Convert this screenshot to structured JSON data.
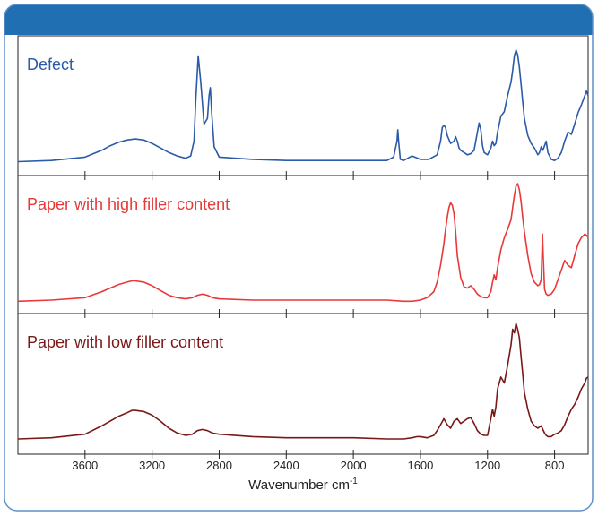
{
  "chart_data": {
    "type": "line",
    "xlabel": "Wavenumber cm",
    "xlabel_superscript": "-1",
    "x_reversed": true,
    "xlim": [
      4000,
      600
    ],
    "x_ticks": [
      3600,
      3200,
      2800,
      2400,
      2000,
      1600,
      1200,
      800
    ],
    "x_tick_labels": [
      "3600",
      "3200",
      "2800",
      "2400",
      "2000",
      "1600",
      "1200",
      "800"
    ],
    "y_axis_shown": false,
    "grid": false,
    "panel_ylim": [
      0,
      1
    ],
    "colors": {
      "header": "#1f6fb2",
      "frame": "#5f8fc6",
      "axis": "#222222"
    },
    "series": [
      {
        "name": "Defect",
        "color": "#2a5aa8",
        "x": [
          4000,
          3800,
          3600,
          3500,
          3450,
          3400,
          3350,
          3300,
          3250,
          3200,
          3150,
          3100,
          3050,
          3000,
          2970,
          2950,
          2940,
          2925,
          2910,
          2890,
          2870,
          2860,
          2853,
          2845,
          2830,
          2800,
          2600,
          2400,
          2200,
          2000,
          1800,
          1760,
          1740,
          1735,
          1730,
          1720,
          1700,
          1650,
          1600,
          1550,
          1500,
          1480,
          1470,
          1460,
          1450,
          1440,
          1420,
          1400,
          1390,
          1380,
          1370,
          1360,
          1340,
          1320,
          1300,
          1280,
          1260,
          1250,
          1240,
          1230,
          1220,
          1200,
          1180,
          1170,
          1160,
          1150,
          1140,
          1120,
          1100,
          1080,
          1060,
          1050,
          1040,
          1030,
          1020,
          1010,
          1000,
          990,
          980,
          960,
          940,
          920,
          900,
          890,
          880,
          870,
          860,
          850,
          840,
          820,
          800,
          780,
          760,
          740,
          720,
          700,
          680,
          660,
          640,
          620,
          610,
          600
        ],
        "values": [
          0.02,
          0.03,
          0.06,
          0.12,
          0.16,
          0.19,
          0.21,
          0.22,
          0.21,
          0.18,
          0.14,
          0.1,
          0.07,
          0.05,
          0.07,
          0.2,
          0.55,
          0.95,
          0.72,
          0.35,
          0.4,
          0.6,
          0.67,
          0.45,
          0.15,
          0.06,
          0.04,
          0.03,
          0.03,
          0.03,
          0.03,
          0.06,
          0.2,
          0.3,
          0.2,
          0.04,
          0.03,
          0.07,
          0.04,
          0.04,
          0.08,
          0.2,
          0.32,
          0.34,
          0.32,
          0.25,
          0.18,
          0.2,
          0.24,
          0.2,
          0.14,
          0.12,
          0.1,
          0.08,
          0.09,
          0.12,
          0.28,
          0.36,
          0.3,
          0.16,
          0.1,
          0.08,
          0.14,
          0.2,
          0.16,
          0.18,
          0.28,
          0.42,
          0.46,
          0.6,
          0.72,
          0.82,
          0.95,
          1.0,
          0.96,
          0.85,
          0.7,
          0.55,
          0.4,
          0.25,
          0.18,
          0.14,
          0.08,
          0.1,
          0.15,
          0.12,
          0.16,
          0.2,
          0.1,
          0.04,
          0.03,
          0.05,
          0.1,
          0.2,
          0.28,
          0.26,
          0.35,
          0.45,
          0.52,
          0.6,
          0.64,
          0.6
        ]
      },
      {
        "name": "Paper with high filler content",
        "color": "#e83838",
        "x": [
          4000,
          3800,
          3600,
          3500,
          3450,
          3400,
          3350,
          3320,
          3300,
          3250,
          3200,
          3150,
          3100,
          3050,
          3000,
          2960,
          2930,
          2900,
          2870,
          2840,
          2800,
          2600,
          2400,
          2200,
          2000,
          1800,
          1700,
          1650,
          1600,
          1560,
          1520,
          1500,
          1480,
          1460,
          1450,
          1440,
          1430,
          1420,
          1410,
          1400,
          1390,
          1380,
          1360,
          1340,
          1320,
          1300,
          1280,
          1260,
          1240,
          1220,
          1200,
          1180,
          1170,
          1160,
          1150,
          1140,
          1120,
          1100,
          1080,
          1060,
          1050,
          1040,
          1030,
          1020,
          1010,
          1000,
          990,
          980,
          960,
          940,
          920,
          900,
          890,
          880,
          876,
          872,
          868,
          860,
          850,
          840,
          820,
          800,
          780,
          760,
          740,
          720,
          700,
          680,
          660,
          640,
          620,
          610,
          600
        ],
        "values": [
          0.02,
          0.03,
          0.05,
          0.1,
          0.13,
          0.16,
          0.18,
          0.19,
          0.19,
          0.18,
          0.15,
          0.11,
          0.07,
          0.05,
          0.04,
          0.05,
          0.07,
          0.08,
          0.07,
          0.05,
          0.04,
          0.03,
          0.03,
          0.03,
          0.03,
          0.03,
          0.02,
          0.02,
          0.03,
          0.05,
          0.1,
          0.18,
          0.32,
          0.5,
          0.62,
          0.72,
          0.8,
          0.84,
          0.82,
          0.75,
          0.6,
          0.4,
          0.22,
          0.14,
          0.13,
          0.15,
          0.12,
          0.08,
          0.06,
          0.05,
          0.05,
          0.1,
          0.18,
          0.24,
          0.2,
          0.3,
          0.45,
          0.55,
          0.62,
          0.7,
          0.8,
          0.9,
          0.98,
          1.0,
          0.95,
          0.85,
          0.72,
          0.6,
          0.4,
          0.25,
          0.18,
          0.15,
          0.16,
          0.2,
          0.4,
          0.58,
          0.4,
          0.12,
          0.08,
          0.07,
          0.08,
          0.12,
          0.2,
          0.28,
          0.36,
          0.32,
          0.3,
          0.4,
          0.5,
          0.55,
          0.58,
          0.57,
          0.55
        ]
      },
      {
        "name": "Paper with low filler content",
        "color": "#7a1818",
        "x": [
          4000,
          3800,
          3600,
          3500,
          3450,
          3400,
          3350,
          3320,
          3300,
          3250,
          3200,
          3150,
          3100,
          3050,
          3000,
          2960,
          2930,
          2900,
          2870,
          2840,
          2800,
          2600,
          2400,
          2200,
          2000,
          1800,
          1700,
          1650,
          1620,
          1600,
          1560,
          1520,
          1500,
          1480,
          1460,
          1440,
          1420,
          1400,
          1380,
          1360,
          1340,
          1320,
          1300,
          1280,
          1260,
          1240,
          1220,
          1200,
          1180,
          1170,
          1160,
          1150,
          1140,
          1120,
          1100,
          1080,
          1060,
          1050,
          1040,
          1030,
          1020,
          1010,
          1000,
          990,
          980,
          960,
          940,
          920,
          900,
          880,
          860,
          850,
          840,
          820,
          800,
          780,
          760,
          740,
          720,
          700,
          680,
          660,
          640,
          620,
          610,
          600
        ],
        "values": [
          0.03,
          0.04,
          0.07,
          0.14,
          0.18,
          0.22,
          0.25,
          0.27,
          0.27,
          0.26,
          0.23,
          0.18,
          0.12,
          0.08,
          0.06,
          0.07,
          0.1,
          0.11,
          0.1,
          0.08,
          0.07,
          0.05,
          0.04,
          0.04,
          0.04,
          0.03,
          0.03,
          0.04,
          0.05,
          0.05,
          0.04,
          0.06,
          0.1,
          0.15,
          0.2,
          0.15,
          0.12,
          0.18,
          0.2,
          0.16,
          0.18,
          0.2,
          0.21,
          0.16,
          0.1,
          0.07,
          0.06,
          0.06,
          0.2,
          0.28,
          0.22,
          0.3,
          0.45,
          0.55,
          0.5,
          0.65,
          0.82,
          0.95,
          0.92,
          1.0,
          0.95,
          0.88,
          0.72,
          0.58,
          0.42,
          0.28,
          0.18,
          0.14,
          0.12,
          0.14,
          0.08,
          0.06,
          0.05,
          0.05,
          0.07,
          0.08,
          0.1,
          0.15,
          0.22,
          0.28,
          0.32,
          0.38,
          0.45,
          0.5,
          0.54,
          0.55
        ]
      }
    ]
  }
}
